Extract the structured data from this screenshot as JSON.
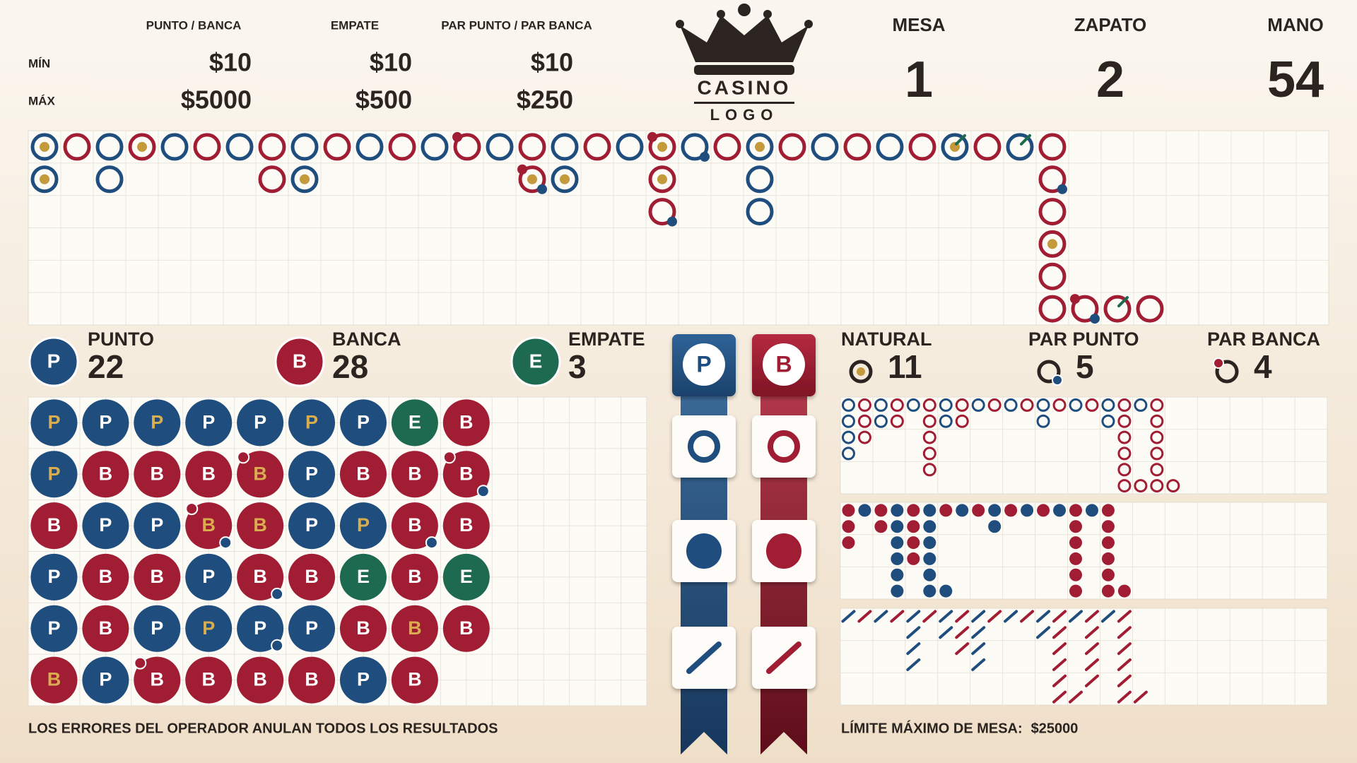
{
  "header": {
    "columns": [
      "PUNTO / BANCA",
      "EMPATE",
      "PAR PUNTO / PAR BANCA"
    ],
    "rows": [
      {
        "label": "MÍN",
        "values": [
          "$10",
          "$10",
          "$10"
        ]
      },
      {
        "label": "MÁX",
        "values": [
          "$5000",
          "$500",
          "$250"
        ]
      }
    ]
  },
  "logo": {
    "top": "CASINO",
    "bottom": "LOGO"
  },
  "info": [
    {
      "label": "MESA",
      "value": 1
    },
    {
      "label": "ZAPATO",
      "value": 2
    },
    {
      "label": "MANO",
      "value": 54
    }
  ],
  "totals": [
    {
      "badge": "P",
      "label": "PUNTO",
      "count": 22
    },
    {
      "badge": "B",
      "label": "BANCA",
      "count": 28
    },
    {
      "badge": "E",
      "label": "EMPATE",
      "count": 3
    }
  ],
  "extras": [
    {
      "label": "NATURAL",
      "count": 11
    },
    {
      "label": "PAR PUNTO",
      "count": 5
    },
    {
      "label": "PAR BANCA",
      "count": 4
    }
  ],
  "predict": [
    "P",
    "B"
  ],
  "bead_plate": [
    [
      "P",
      "P",
      "B",
      "P",
      "P",
      "B"
    ],
    [
      "P",
      "B",
      "P",
      "B",
      "B",
      "P"
    ],
    [
      "P",
      "B",
      "P",
      "B",
      "P",
      "B"
    ],
    [
      "P",
      "B",
      "B",
      "P",
      "P",
      "B"
    ],
    [
      "P",
      "B",
      "B",
      "B",
      "P",
      "B"
    ],
    [
      "P",
      "P",
      "P",
      "B",
      "P",
      "B"
    ],
    [
      "P",
      "B",
      "P",
      "E",
      "B",
      "P"
    ],
    [
      "E",
      "B",
      "B",
      "B",
      "B",
      "B"
    ],
    [
      "B",
      "B",
      "B",
      "E",
      "B"
    ]
  ],
  "footer": {
    "notice": "LOS ERRORES DEL OPERADOR ANULAN TODOS LOS RESULTADOS",
    "limit_label": "LÍMITE MÁXIMO DE MESA:",
    "limit_value": "$25000"
  }
}
